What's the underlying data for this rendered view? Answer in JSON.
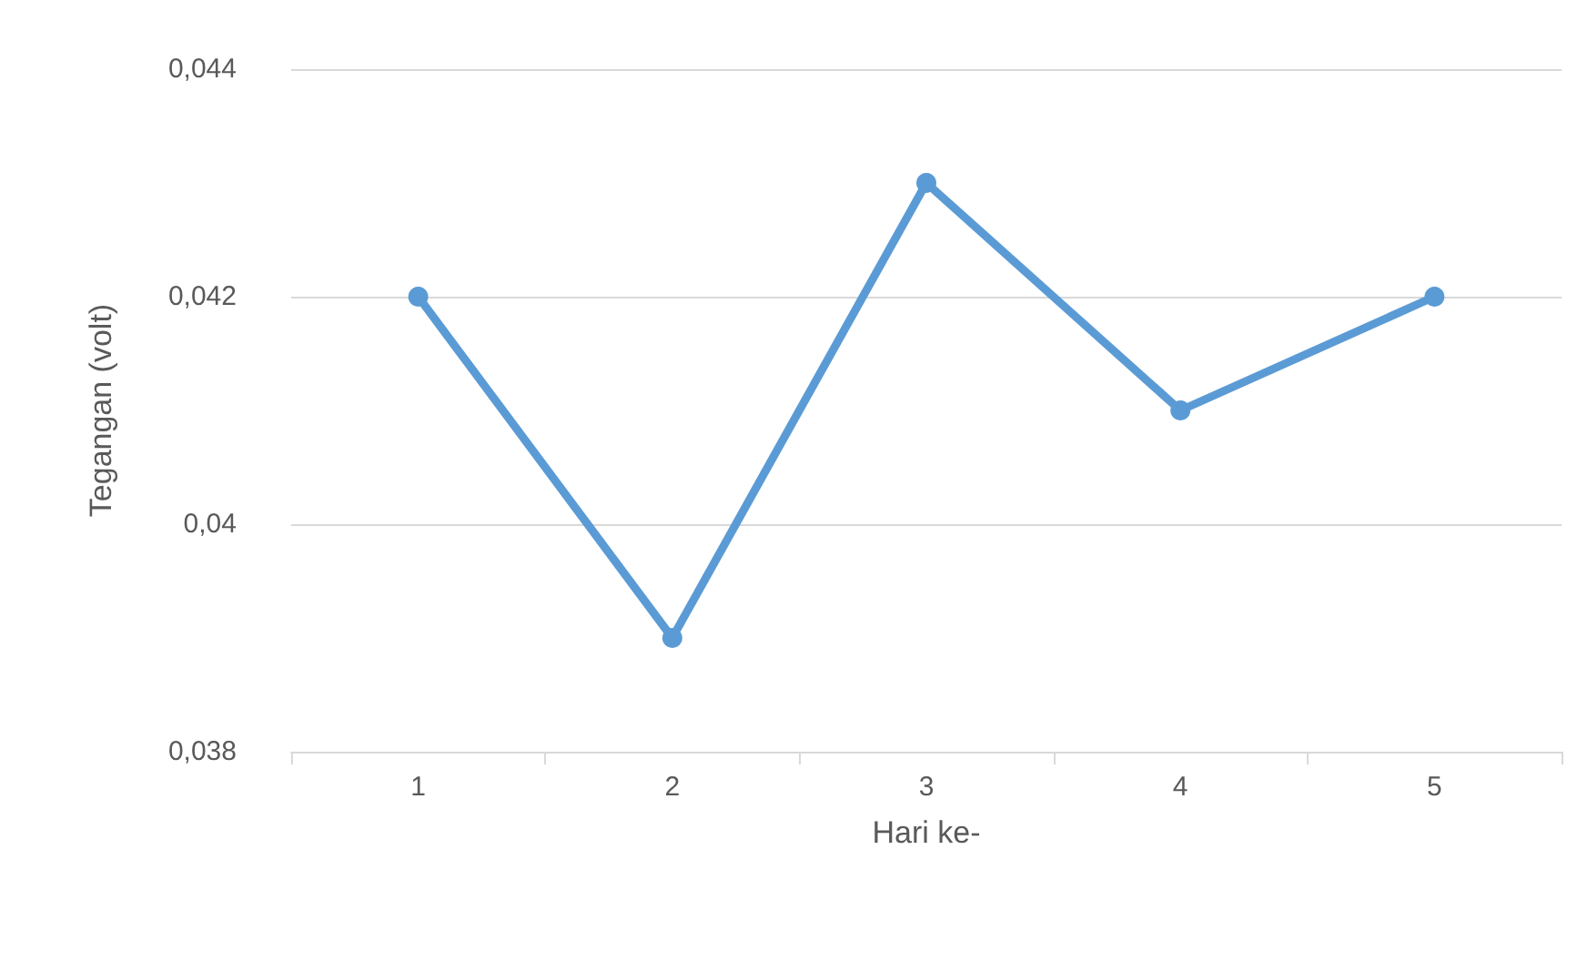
{
  "chart_data": {
    "type": "line",
    "xlabel": "Hari ke-",
    "ylabel": "Tegangan (volt)",
    "categories": [
      "1",
      "2",
      "3",
      "4",
      "5"
    ],
    "series": [
      {
        "color": "#5b9bd5",
        "values": [
          0.042,
          0.039,
          0.043,
          0.041,
          0.042
        ]
      }
    ],
    "ylim": [
      0.038,
      0.044
    ],
    "yticks": [
      {
        "value": 0.038,
        "label": "0,038"
      },
      {
        "value": 0.04,
        "label": "0,04"
      },
      {
        "value": 0.042,
        "label": "0,042"
      },
      {
        "value": 0.044,
        "label": "0,044"
      }
    ],
    "grid": "y",
    "marker": "circle",
    "line_style": "solid"
  }
}
